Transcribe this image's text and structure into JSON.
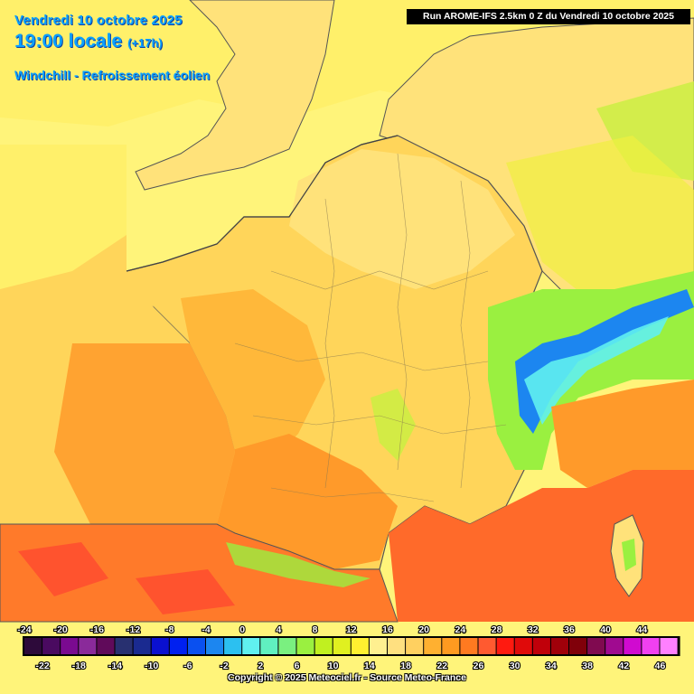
{
  "header": {
    "date": "Vendredi 10 octobre 2025",
    "time": "19:00 locale",
    "offset": "(+17h)",
    "parameter": "Windchill - Refroissement éolien",
    "run": "Run AROME-IFS 2.5km 0 Z du Vendredi 10 octobre 2025"
  },
  "legend": {
    "values": [
      -24,
      -22,
      -20,
      -18,
      -16,
      -14,
      -12,
      -10,
      -8,
      -6,
      -4,
      -2,
      0,
      2,
      4,
      6,
      8,
      10,
      12,
      14,
      16,
      18,
      20,
      22,
      24,
      26,
      28,
      30,
      32,
      34,
      36,
      38,
      40,
      42,
      44,
      46
    ],
    "colors": [
      "#2d0a3a",
      "#4a0a60",
      "#7a0a90",
      "#8a2a9a",
      "#600a5a",
      "#283070",
      "#1a2a90",
      "#0a10d0",
      "#0020f0",
      "#0a50f0",
      "#1c86f0",
      "#2cc0f0",
      "#60f0f0",
      "#60f0c0",
      "#7af080",
      "#9af040",
      "#c0f020",
      "#e0f020",
      "#fff030",
      "#fff090",
      "#ffe080",
      "#ffd060",
      "#ffb030",
      "#ff9a20",
      "#ff7a20",
      "#ff5a30",
      "#ff1a10",
      "#e00a0a",
      "#c0000a",
      "#a0000a",
      "#80000a",
      "#800a50",
      "#a00a90",
      "#d00ad0",
      "#f040f0",
      "#ff80ff"
    ]
  },
  "copyright": "Copyright © 2025 Meteociel.fr - Source Meteo-France",
  "map": {
    "field_colors": {
      "north_yellow": "#fff47a",
      "land_light": "#ffe27a",
      "land_mid": "#ffd55a",
      "land_warm": "#ffb83a",
      "south_orange": "#ff9a2a",
      "mediterranean": "#ff6a2a",
      "alps_green": "#9af040",
      "alps_blue": "#1c86f0"
    }
  }
}
